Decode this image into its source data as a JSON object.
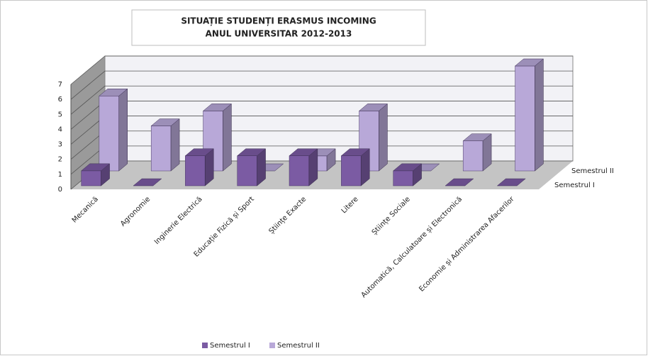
{
  "chart_data": {
    "type": "bar3d",
    "title": [
      "SITUAȚIE STUDENȚI  ERASMUS INCOMING",
      "ANUL UNIVERSITAR 2012-2013"
    ],
    "categories": [
      "Mecanică",
      "Agronomie",
      "Inginerie Electrică",
      "Educație Fizică și Sport",
      "Științe Exacte",
      "Litere",
      "Științe Sociale",
      "Automatică, Calculatoare și Electronică",
      "Economie și Administrarea Afacerilor"
    ],
    "series": [
      {
        "name": "Semestrul I",
        "color": "#7b5ba3",
        "values": [
          1,
          0,
          2,
          2,
          2,
          2,
          1,
          0,
          0
        ]
      },
      {
        "name": "Semestrul II",
        "color": "#b8a8d8",
        "values": [
          5,
          3,
          4,
          0,
          1,
          4,
          0,
          2,
          7
        ]
      }
    ],
    "ylim": [
      0,
      7
    ],
    "yticks": [
      0,
      1,
      2,
      3,
      4,
      5,
      6,
      7
    ],
    "grid": true,
    "legend": "bottom"
  }
}
